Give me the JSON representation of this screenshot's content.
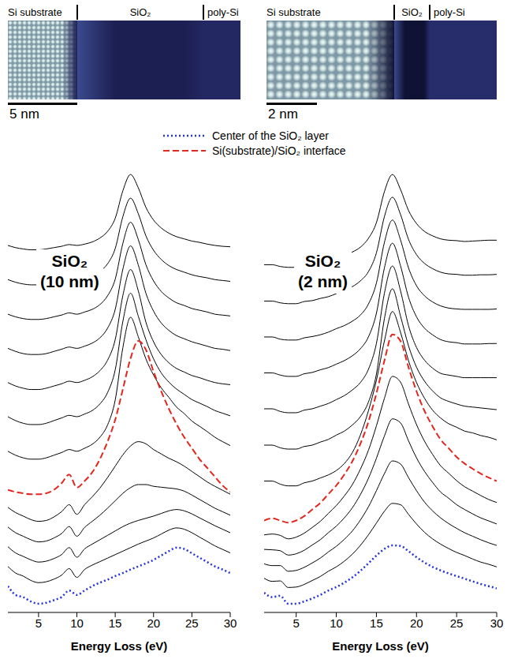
{
  "chart_data": [
    {
      "type": "line",
      "title": "SiO₂ (10 nm)",
      "x_label": "Energy Loss (eV)",
      "image": {
        "labels": [
          "Si substrate",
          "SiO₂",
          "poly-Si"
        ],
        "scale_bar": "5 nm"
      },
      "legend": "top",
      "tick_labels": "x",
      "xlim": [
        1,
        30
      ],
      "xticks": [
        5,
        10,
        15,
        20,
        25,
        30
      ],
      "ylim": [
        0,
        102
      ],
      "x": [
        1,
        2,
        3,
        4,
        5,
        6,
        7,
        8,
        9,
        10,
        11,
        12,
        13,
        14,
        15,
        16,
        17,
        18,
        19,
        20,
        21,
        22,
        23,
        24,
        25,
        26,
        27,
        28,
        29,
        30
      ],
      "series": [
        {
          "name": "Center of the SiO₂ layer",
          "color": "#2633d9",
          "line_style": "dotted",
          "values": [
            6,
            4,
            3.5,
            2.5,
            2,
            2.2,
            2.8,
            3.5,
            5,
            4,
            5,
            6,
            6.8,
            7.5,
            8.3,
            9,
            9.8,
            10.5,
            11.2,
            12,
            13,
            14,
            14.8,
            14.5,
            13.5,
            12.5,
            11.5,
            10.5,
            9.8,
            9
          ]
        },
        {
          "color": "#000000",
          "values": [
            10.5,
            9,
            8.3,
            7.3,
            6.8,
            7,
            7.6,
            8.5,
            10,
            8,
            9.8,
            10.8,
            11.6,
            12.4,
            13.2,
            14,
            14.8,
            15.6,
            16.3,
            17,
            17.9,
            18.8,
            19.3,
            19,
            18.2,
            17.2,
            16.2,
            15.2,
            14.4,
            13.6
          ]
        },
        {
          "color": "#000000",
          "values": [
            15,
            13.6,
            12.8,
            12,
            11.5,
            11.7,
            12.3,
            13.2,
            14.8,
            12.6,
            14.5,
            15.6,
            16.6,
            17.6,
            18.6,
            19.6,
            20.4,
            21,
            21.5,
            22,
            22.6,
            23.2,
            23.5,
            23.2,
            22.5,
            21.6,
            20.7,
            19.8,
            19,
            18.2
          ]
        },
        {
          "color": "#000000",
          "values": [
            19.5,
            18.2,
            17.4,
            16.6,
            16.1,
            16.3,
            17,
            18,
            19.6,
            17.4,
            19.4,
            20.8,
            22.2,
            23.8,
            25.5,
            27.2,
            28.5,
            29.2,
            29.2,
            28.8,
            28.6,
            28.4,
            28.2,
            27.7,
            26.8,
            25.8,
            24.8,
            23.8,
            23,
            22.2
          ]
        },
        {
          "color": "#000000",
          "values": [
            24,
            22.8,
            22,
            21.2,
            20.8,
            21,
            21.8,
            23,
            24.6,
            22.4,
            24.6,
            26.4,
            28.4,
            30.8,
            33.4,
            36,
            38,
            39,
            38.5,
            37.2,
            36.2,
            35.2,
            34.4,
            33.4,
            32.2,
            31,
            29.8,
            28.8,
            27.9,
            27
          ]
        },
        {
          "name": "Si(substrate)/SiO₂ interface",
          "color": "#e3261e",
          "line_style": "dashed",
          "values": [
            28,
            27.5,
            27.2,
            27,
            27,
            27.2,
            28,
            29.5,
            31.5,
            28.5,
            30,
            32,
            35,
            39,
            44,
            51,
            58,
            62,
            60,
            55,
            50.5,
            46.5,
            43,
            40,
            37.5,
            35,
            33,
            31,
            29,
            27.5
          ]
        },
        {
          "color": "#000000",
          "values": [
            36.8,
            35.9,
            35.3,
            35,
            35,
            35.3,
            35.9,
            36.5,
            37.2,
            36.8,
            37.5,
            38.4,
            40,
            42.8,
            48.5,
            60.5,
            67.4,
            63,
            57.9,
            54.2,
            51.3,
            49.1,
            46.9,
            45.4,
            43.7,
            42.5,
            41.3,
            40,
            39,
            38.1
          ]
        },
        {
          "color": "#000000",
          "values": [
            44.7,
            43.8,
            43.2,
            42.9,
            42.9,
            43.2,
            43.8,
            44.4,
            45,
            44.7,
            45.3,
            46.1,
            47.6,
            50.2,
            55.4,
            66.5,
            72.9,
            67.7,
            62.3,
            57.9,
            54.7,
            52.6,
            51,
            49.8,
            48.6,
            47.8,
            47,
            46.1,
            45.5,
            44.9
          ]
        },
        {
          "color": "#000000",
          "values": [
            52.5,
            51.7,
            51.2,
            50.9,
            50.9,
            51.2,
            51.7,
            52.2,
            52.8,
            52.5,
            53,
            53.8,
            55.2,
            57.6,
            62.3,
            72.4,
            78.3,
            73.5,
            66.3,
            61.8,
            58.9,
            57,
            55.7,
            54.9,
            54.1,
            53.6,
            53,
            52.5,
            52.2,
            52
          ]
        },
        {
          "color": "#000000",
          "values": [
            60.3,
            59.6,
            59.1,
            58.9,
            58.9,
            59.1,
            59.6,
            60.1,
            60.6,
            60.3,
            60.8,
            61.5,
            62.7,
            64.9,
            69.2,
            78.4,
            83.7,
            79.4,
            72.9,
            68.8,
            66.1,
            64.4,
            63.2,
            62.5,
            61.8,
            61.3,
            60.8,
            60.3,
            60.1,
            59.8
          ]
        },
        {
          "color": "#000000",
          "values": [
            68.1,
            67.5,
            67.1,
            66.9,
            66.9,
            67.1,
            67.5,
            67.9,
            68.4,
            68.1,
            68.6,
            69.2,
            70.3,
            72.3,
            76.1,
            84.3,
            89.1,
            85.2,
            79.4,
            75.7,
            73.3,
            71.8,
            70.7,
            70.1,
            69.4,
            69,
            68.6,
            68.1,
            67.9,
            67.7
          ]
        },
        {
          "color": "#000000",
          "values": [
            76,
            75.4,
            75,
            74.8,
            74.8,
            75,
            75.4,
            75.8,
            76.2,
            76,
            76.4,
            76.9,
            77.9,
            79.6,
            83.1,
            90.4,
            94.6,
            91.1,
            86,
            82.7,
            80.6,
            79.2,
            78.3,
            77.7,
            77.1,
            76.7,
            76.4,
            76,
            75.8,
            75.6
          ]
        },
        {
          "color": "#000000",
          "values": [
            83.8,
            83.3,
            83,
            82.8,
            82.8,
            83,
            83.3,
            83.6,
            84,
            83.8,
            84.1,
            84.6,
            85.5,
            87,
            90,
            96.3,
            100,
            97,
            92.5,
            89.6,
            87.8,
            86.6,
            85.8,
            85.3,
            84.8,
            84.5,
            84.1,
            83.8,
            83.6,
            83.5
          ]
        }
      ]
    },
    {
      "type": "line",
      "title": "SiO₂ (2 nm)",
      "x_label": "Energy Loss (eV)",
      "image": {
        "labels": [
          "Si substrate",
          "SiO₂",
          "poly-Si"
        ],
        "scale_bar": "2 nm"
      },
      "tick_labels": "x",
      "xlim": [
        1,
        30
      ],
      "xticks": [
        5,
        10,
        15,
        20,
        25,
        30
      ],
      "ylim": [
        0,
        102
      ],
      "x": [
        1,
        2,
        3,
        4,
        5,
        6,
        7,
        8,
        9,
        10,
        11,
        12,
        13,
        14,
        15,
        16,
        17,
        18,
        19,
        20,
        21,
        22,
        23,
        24,
        25,
        26,
        27,
        28,
        29,
        30
      ],
      "series": [
        {
          "name": "Center of the SiO₂ layer",
          "color": "#2633d9",
          "line_style": "dotted",
          "values": [
            4.5,
            3.5,
            3.8,
            2,
            2,
            2.5,
            3.2,
            4,
            5,
            5.8,
            6.8,
            8,
            9.5,
            11.2,
            13,
            14.5,
            15.3,
            15.2,
            14,
            12.6,
            11.4,
            10.4,
            9.6,
            8.9,
            8.3,
            7.7,
            7.1,
            6.5,
            6,
            5.5
          ]
        },
        {
          "color": "#000000",
          "values": [
            7.8,
            7.1,
            7.2,
            5.7,
            5.8,
            6.4,
            7.3,
            8.2,
            9.4,
            10.4,
            11.7,
            13.3,
            15.3,
            17.7,
            20.4,
            23.1,
            24.9,
            24.6,
            22.4,
            20.2,
            18.3,
            16.8,
            15.6,
            14.6,
            13.7,
            13,
            12.2,
            11.5,
            11,
            10.4
          ]
        },
        {
          "color": "#000000",
          "values": [
            11.1,
            10.7,
            10.7,
            9.4,
            9.6,
            10.3,
            11.3,
            12.4,
            13.8,
            15.1,
            16.7,
            18.6,
            21.1,
            24.1,
            27.8,
            31.7,
            34.6,
            33.9,
            30.8,
            27.8,
            25.2,
            23.2,
            21.6,
            20.3,
            19.2,
            18.2,
            17.4,
            16.6,
            15.9,
            15.3
          ]
        },
        {
          "color": "#000000",
          "values": [
            14.4,
            14.3,
            14.1,
            13.1,
            13.4,
            14.2,
            15.4,
            16.6,
            18.2,
            19.7,
            21.6,
            23.9,
            26.9,
            30.6,
            35.2,
            40.3,
            44.2,
            43.3,
            39.2,
            35.3,
            32.2,
            29.7,
            27.5,
            26.1,
            24.6,
            23.5,
            22.5,
            21.6,
            20.9,
            20.2
          ]
        },
        {
          "color": "#000000",
          "values": [
            17.7,
            17.9,
            17.6,
            16.8,
            17.2,
            18.1,
            19.4,
            20.8,
            22.6,
            24.4,
            26.6,
            29.2,
            32.7,
            37,
            42.6,
            48.9,
            53.9,
            52.6,
            47.6,
            42.9,
            39.1,
            36.1,
            33.5,
            31.8,
            30.1,
            28.7,
            27.7,
            26.7,
            25.8,
            25.1
          ]
        },
        {
          "name": "Si(substrate)/SiO₂ interface",
          "color": "#e3261e",
          "line_style": "dashed",
          "values": [
            21,
            21.5,
            21,
            20.5,
            21,
            22,
            23.5,
            25,
            27,
            29,
            31.5,
            34.5,
            38.5,
            43.5,
            50,
            57.5,
            63.5,
            62,
            56,
            50.5,
            46,
            42.5,
            39.5,
            37.5,
            35.5,
            34,
            32.8,
            31.7,
            30.8,
            30
          ]
        },
        {
          "color": "#000000",
          "values": [
            30,
            30,
            29.3,
            28.9,
            28.9,
            29.6,
            30,
            30.7,
            31.4,
            32.4,
            34,
            36.5,
            40.5,
            46,
            53,
            62,
            68.7,
            64,
            57.5,
            52.5,
            48.9,
            46.2,
            44.4,
            43.1,
            42.3,
            41.4,
            41,
            40.4,
            40,
            39.4
          ]
        },
        {
          "color": "#000000",
          "values": [
            38.2,
            38.2,
            37.6,
            37.3,
            37.3,
            37.9,
            38.2,
            38.9,
            39.5,
            40.5,
            41.4,
            42.8,
            44.7,
            48,
            54.4,
            67.1,
            73.9,
            67.7,
            60.9,
            56,
            52.8,
            50.6,
            49,
            48.2,
            47.6,
            47.1,
            46.9,
            46.7,
            46.5,
            46.3
          ]
        },
        {
          "color": "#000000",
          "values": [
            46.5,
            46.5,
            45.9,
            45.6,
            45.6,
            46.2,
            46.5,
            47.1,
            47.7,
            48.6,
            49.5,
            50.8,
            52.5,
            55.5,
            61.4,
            72.9,
            79.1,
            73.5,
            65.5,
            60.5,
            57.6,
            55.8,
            54.6,
            54.2,
            53.9,
            53.6,
            53.6,
            53.6,
            53.6,
            53.6
          ]
        },
        {
          "color": "#000000",
          "values": [
            54.7,
            54.7,
            54.2,
            53.9,
            53.9,
            54.5,
            54.8,
            55.4,
            55.9,
            56.7,
            57.5,
            58.6,
            60.2,
            62.9,
            68.3,
            78.7,
            84.3,
            79.2,
            72,
            67.5,
            64.9,
            63.4,
            62.3,
            61.8,
            61.6,
            61.3,
            61.3,
            61.3,
            61.4,
            61.4
          ]
        },
        {
          "color": "#000000",
          "values": [
            62.9,
            62.9,
            62.4,
            62.2,
            62.2,
            62.7,
            63,
            63.4,
            64,
            64.8,
            65.5,
            66.5,
            67.9,
            70.4,
            75.2,
            84.5,
            89.6,
            85.1,
            78.7,
            74.6,
            72.3,
            70.9,
            70,
            69.5,
            69.3,
            69.2,
            69.2,
            69.2,
            69.2,
            69.3
          ]
        },
        {
          "color": "#000000",
          "values": [
            71.1,
            71.1,
            70.7,
            70.5,
            70.5,
            71,
            71.2,
            71.7,
            72.1,
            72.8,
            73.6,
            74.4,
            75.7,
            77.8,
            82.1,
            90.4,
            94.8,
            90.9,
            85.2,
            81.7,
            79.7,
            78.5,
            77.7,
            77.3,
            77.2,
            77,
            77,
            77.1,
            77.1,
            77.2
          ]
        },
        {
          "color": "#000000",
          "values": [
            79.4,
            79.4,
            79,
            78.8,
            78.8,
            79.2,
            79.5,
            79.9,
            80.4,
            80.9,
            81.5,
            82.3,
            83.4,
            85.4,
            89,
            96.1,
            100,
            96.6,
            91.8,
            88.8,
            87,
            86,
            85.3,
            85,
            84.9,
            84.7,
            84.8,
            84.9,
            85,
            85
          ]
        }
      ]
    }
  ]
}
